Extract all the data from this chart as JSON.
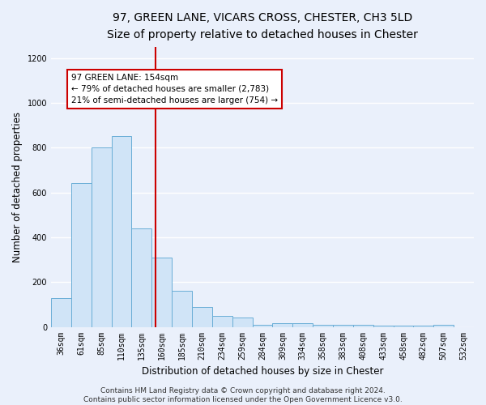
{
  "title": "97, GREEN LANE, VICARS CROSS, CHESTER, CH3 5LD",
  "subtitle": "Size of property relative to detached houses in Chester",
  "xlabel": "Distribution of detached houses by size in Chester",
  "ylabel": "Number of detached properties",
  "categories": [
    "36sqm",
    "61sqm",
    "85sqm",
    "110sqm",
    "135sqm",
    "160sqm",
    "185sqm",
    "210sqm",
    "234sqm",
    "259sqm",
    "284sqm",
    "309sqm",
    "334sqm",
    "358sqm",
    "383sqm",
    "408sqm",
    "433sqm",
    "458sqm",
    "482sqm",
    "507sqm",
    "532sqm"
  ],
  "values": [
    130,
    640,
    800,
    850,
    440,
    310,
    160,
    90,
    50,
    40,
    10,
    15,
    15,
    10,
    10,
    10,
    5,
    5,
    5,
    10,
    0
  ],
  "bar_color": "#d0e4f7",
  "bar_edge_color": "#6aaed6",
  "background_color": "#eaf0fb",
  "grid_color": "#ffffff",
  "vline_x": 4.7,
  "vline_color": "#cc0000",
  "annotation_text": "97 GREEN LANE: 154sqm\n← 79% of detached houses are smaller (2,783)\n21% of semi-detached houses are larger (754) →",
  "annotation_box_color": "#ffffff",
  "annotation_box_edge": "#cc0000",
  "ylim": [
    0,
    1250
  ],
  "yticks": [
    0,
    200,
    400,
    600,
    800,
    1000,
    1200
  ],
  "footer": "Contains HM Land Registry data © Crown copyright and database right 2024.\nContains public sector information licensed under the Open Government Licence v3.0.",
  "title_fontsize": 10,
  "subtitle_fontsize": 9.5,
  "xlabel_fontsize": 8.5,
  "ylabel_fontsize": 8.5,
  "tick_fontsize": 7,
  "footer_fontsize": 6.5,
  "annotation_fontsize": 7.5
}
